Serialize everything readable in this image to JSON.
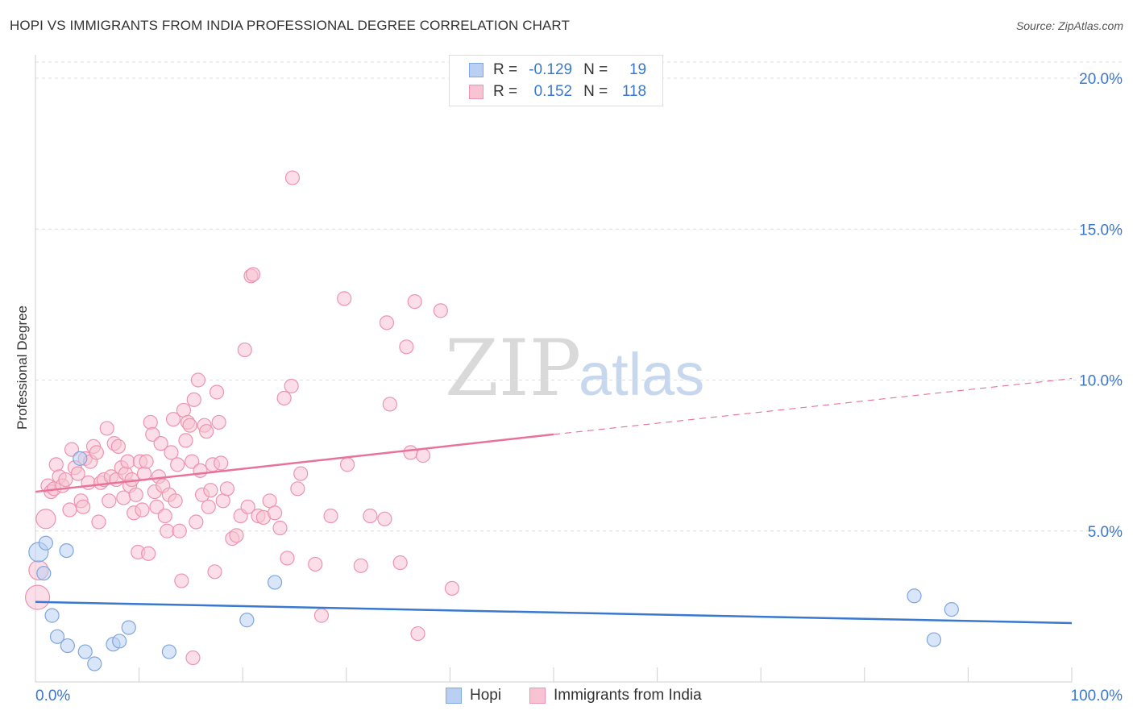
{
  "title": "HOPI VS IMMIGRANTS FROM INDIA PROFESSIONAL DEGREE CORRELATION CHART",
  "source": "Source: ZipAtlas.com",
  "watermark": {
    "zip": "ZIP",
    "atlas": "atlas"
  },
  "legend": {
    "hopi": {
      "r_label": "R =",
      "r_value": "-0.129",
      "n_label": "N =",
      "n_value": "19"
    },
    "india": {
      "r_label": "R =",
      "r_value": "0.152",
      "n_label": "N =",
      "n_value": "118"
    }
  },
  "bottom_legend": {
    "hopi": "Hopi",
    "india": "Immigrants from India"
  },
  "colors": {
    "hopi_fill": "#b9d0f2",
    "hopi_stroke": "#7fa6df",
    "hopi_line": "#3a78d0",
    "india_fill": "#f8c3d3",
    "india_stroke": "#ee93b0",
    "india_line": "#e8739a",
    "axis_text": "#3a78d0"
  },
  "chart_data": {
    "type": "scatter",
    "title": "HOPI VS IMMIGRANTS FROM INDIA PROFESSIONAL DEGREE CORRELATION CHART",
    "xlabel": "",
    "ylabel": "Professional Degree",
    "xlim": [
      0,
      100
    ],
    "ylim": [
      0,
      20.5
    ],
    "x_tick_labels": [
      "0.0%",
      "100.0%"
    ],
    "y_ticks": [
      5,
      10,
      15,
      20
    ],
    "y_tick_labels": [
      "5.0%",
      "10.0%",
      "15.0%",
      "20.0%"
    ],
    "grid": "horizontal-dashed",
    "series": [
      {
        "name": "Hopi",
        "points": [
          [
            0.3,
            4.3,
            2
          ],
          [
            1.0,
            4.6,
            1
          ],
          [
            0.8,
            3.6,
            1
          ],
          [
            3.0,
            4.35,
            1
          ],
          [
            4.3,
            7.4,
            1
          ],
          [
            1.6,
            2.2,
            1
          ],
          [
            2.1,
            1.5,
            1
          ],
          [
            3.1,
            1.2,
            1
          ],
          [
            4.8,
            1.0,
            1
          ],
          [
            5.7,
            0.6,
            1
          ],
          [
            7.5,
            1.25,
            1
          ],
          [
            8.1,
            1.35,
            1
          ],
          [
            9.0,
            1.8,
            1
          ],
          [
            12.9,
            1.0,
            1
          ],
          [
            20.4,
            2.05,
            1
          ],
          [
            23.1,
            3.3,
            1
          ],
          [
            84.8,
            2.85,
            1
          ],
          [
            86.7,
            1.4,
            1
          ],
          [
            88.4,
            2.4,
            1
          ]
        ],
        "trend": {
          "x": [
            0,
            100
          ],
          "y": [
            2.65,
            1.95
          ]
        }
      },
      {
        "name": "Immigrants from India",
        "points": [
          [
            0.2,
            2.8,
            3
          ],
          [
            0.3,
            3.7,
            2
          ],
          [
            1.0,
            5.4,
            2
          ],
          [
            1.2,
            6.5,
            1
          ],
          [
            1.5,
            6.3,
            1
          ],
          [
            1.8,
            6.4,
            1
          ],
          [
            2.0,
            7.2,
            1
          ],
          [
            2.3,
            6.8,
            1
          ],
          [
            2.6,
            6.5,
            1
          ],
          [
            2.9,
            6.7,
            1
          ],
          [
            3.3,
            5.7,
            1
          ],
          [
            3.5,
            7.7,
            1
          ],
          [
            3.8,
            7.1,
            1
          ],
          [
            4.1,
            6.9,
            1
          ],
          [
            4.4,
            6.0,
            1
          ],
          [
            4.6,
            5.8,
            1
          ],
          [
            4.8,
            7.4,
            1
          ],
          [
            5.1,
            6.6,
            1
          ],
          [
            5.3,
            7.3,
            1
          ],
          [
            5.6,
            7.8,
            1
          ],
          [
            5.9,
            7.6,
            1
          ],
          [
            6.1,
            5.3,
            1
          ],
          [
            6.3,
            6.6,
            1
          ],
          [
            6.6,
            6.7,
            1
          ],
          [
            6.9,
            8.4,
            1
          ],
          [
            7.1,
            6.0,
            1
          ],
          [
            7.3,
            6.8,
            1
          ],
          [
            7.6,
            7.9,
            1
          ],
          [
            7.8,
            6.7,
            1
          ],
          [
            8.0,
            7.8,
            1
          ],
          [
            8.3,
            7.1,
            1
          ],
          [
            8.5,
            6.1,
            1
          ],
          [
            8.7,
            6.9,
            1
          ],
          [
            8.9,
            7.3,
            1
          ],
          [
            9.1,
            6.5,
            1
          ],
          [
            9.3,
            6.7,
            1
          ],
          [
            9.5,
            5.6,
            1
          ],
          [
            9.7,
            6.2,
            1
          ],
          [
            9.9,
            4.3,
            1
          ],
          [
            10.1,
            7.3,
            1
          ],
          [
            10.3,
            5.7,
            1
          ],
          [
            10.5,
            6.9,
            1
          ],
          [
            10.7,
            7.3,
            1
          ],
          [
            10.9,
            4.25,
            1
          ],
          [
            11.1,
            8.6,
            1
          ],
          [
            11.3,
            8.2,
            1
          ],
          [
            11.5,
            6.3,
            1
          ],
          [
            11.7,
            5.8,
            1
          ],
          [
            11.9,
            6.8,
            1
          ],
          [
            12.1,
            7.9,
            1
          ],
          [
            12.3,
            6.5,
            1
          ],
          [
            12.5,
            5.5,
            1
          ],
          [
            12.7,
            5.0,
            1
          ],
          [
            12.9,
            6.2,
            1
          ],
          [
            13.1,
            7.6,
            1
          ],
          [
            13.3,
            8.7,
            1
          ],
          [
            13.5,
            6.0,
            1
          ],
          [
            13.7,
            7.2,
            1
          ],
          [
            13.9,
            5.0,
            1
          ],
          [
            14.1,
            3.35,
            1
          ],
          [
            14.3,
            9.0,
            1
          ],
          [
            14.5,
            8.0,
            1
          ],
          [
            14.7,
            8.6,
            1
          ],
          [
            14.9,
            8.5,
            1
          ],
          [
            15.1,
            7.3,
            1
          ],
          [
            15.3,
            9.35,
            1
          ],
          [
            15.5,
            5.3,
            1
          ],
          [
            15.7,
            10.0,
            1
          ],
          [
            15.9,
            7.0,
            1
          ],
          [
            16.1,
            6.2,
            1
          ],
          [
            16.3,
            8.5,
            1
          ],
          [
            16.5,
            8.3,
            1
          ],
          [
            16.7,
            5.8,
            1
          ],
          [
            16.9,
            6.35,
            1
          ],
          [
            17.1,
            7.2,
            1
          ],
          [
            17.3,
            3.65,
            1
          ],
          [
            17.5,
            9.6,
            1
          ],
          [
            17.7,
            8.6,
            1
          ],
          [
            17.9,
            7.25,
            1
          ],
          [
            18.1,
            6.0,
            1
          ],
          [
            18.5,
            6.4,
            1
          ],
          [
            19.0,
            4.75,
            1
          ],
          [
            19.4,
            4.85,
            1
          ],
          [
            19.8,
            5.5,
            1
          ],
          [
            20.2,
            11.0,
            1
          ],
          [
            20.5,
            5.8,
            1
          ],
          [
            20.8,
            13.45,
            1
          ],
          [
            21.0,
            13.5,
            1
          ],
          [
            21.5,
            5.5,
            1
          ],
          [
            22.0,
            5.45,
            1
          ],
          [
            22.6,
            6.0,
            1
          ],
          [
            23.1,
            5.6,
            1
          ],
          [
            23.6,
            5.1,
            1
          ],
          [
            24.0,
            9.4,
            1
          ],
          [
            24.3,
            4.1,
            1
          ],
          [
            24.7,
            9.8,
            1
          ],
          [
            24.8,
            16.7,
            1
          ],
          [
            25.3,
            6.4,
            1
          ],
          [
            25.6,
            6.9,
            1
          ],
          [
            27.0,
            3.9,
            1
          ],
          [
            27.6,
            2.2,
            1
          ],
          [
            28.5,
            5.5,
            1
          ],
          [
            29.8,
            12.7,
            1
          ],
          [
            30.1,
            7.2,
            1
          ],
          [
            31.4,
            3.85,
            1
          ],
          [
            32.3,
            5.5,
            1
          ],
          [
            33.7,
            5.4,
            1
          ],
          [
            33.9,
            11.9,
            1
          ],
          [
            34.2,
            9.2,
            1
          ],
          [
            35.2,
            3.95,
            1
          ],
          [
            35.8,
            11.1,
            1
          ],
          [
            36.2,
            7.6,
            1
          ],
          [
            36.6,
            12.6,
            1
          ],
          [
            36.9,
            1.6,
            1
          ],
          [
            37.4,
            7.5,
            1
          ],
          [
            39.1,
            12.3,
            1
          ],
          [
            40.2,
            3.1,
            1
          ],
          [
            15.2,
            0.8,
            1
          ]
        ],
        "trend": {
          "x": [
            0,
            50
          ],
          "y": [
            6.3,
            8.2
          ],
          "dashed_to": [
            100,
            10.05
          ]
        }
      }
    ]
  }
}
